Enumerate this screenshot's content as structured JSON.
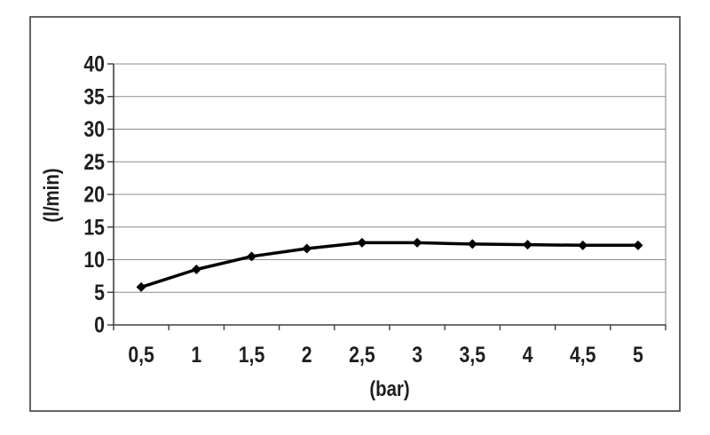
{
  "chart_data": {
    "type": "line",
    "title": "",
    "xlabel": "(bar)",
    "ylabel": "(l/min)",
    "x_values": [
      0.5,
      1,
      1.5,
      2,
      2.5,
      3,
      3.5,
      4,
      4.5,
      5
    ],
    "x_tick_labels": [
      "0,5",
      "1",
      "1,5",
      "2",
      "2,5",
      "3",
      "3,5",
      "4",
      "4,5",
      "5"
    ],
    "values": [
      5.8,
      8.5,
      10.5,
      11.7,
      12.6,
      12.6,
      12.4,
      12.3,
      12.2,
      12.2
    ],
    "ylim": [
      0,
      40
    ],
    "y_ticks": [
      0,
      5,
      10,
      15,
      20,
      25,
      30,
      35,
      40
    ],
    "y_tick_labels": [
      "0",
      "5",
      "10",
      "15",
      "20",
      "25",
      "30",
      "35",
      "40"
    ],
    "grid": "horizontal",
    "legend": "none",
    "marker": "diamond",
    "colors": {
      "line": "#000000",
      "marker": "#000000",
      "gridline": "#8c8c8c",
      "axis": "#3f3f3f",
      "text": "#1f1f1f",
      "frame_border": "#4a4a4a",
      "background": "#ffffff"
    }
  }
}
